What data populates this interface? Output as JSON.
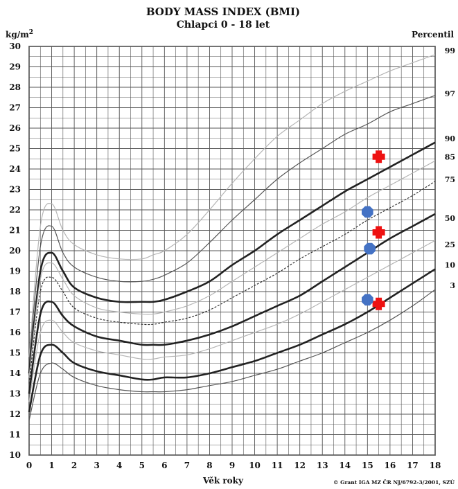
{
  "chart_data": {
    "type": "line",
    "title": "BODY MASS INDEX (BMI)",
    "subtitle": "Chlapci 0 - 18 let",
    "xlabel": "Věk roky",
    "ylabel": "kg/m²",
    "percentile_label": "Percentil",
    "credit": "© Grant IGA MZ ČR NJ/6792-3/2001, SZÚ",
    "xlim": [
      0,
      18
    ],
    "ylim": [
      10,
      30
    ],
    "x_ticks": [
      "0",
      "1",
      "2",
      "3",
      "4",
      "5",
      "6",
      "7",
      "8",
      "9",
      "10",
      "11",
      "12",
      "13",
      "14",
      "15",
      "16",
      "17",
      "18"
    ],
    "y_ticks": [
      "10",
      "11",
      "12",
      "13",
      "14",
      "15",
      "16",
      "17",
      "18",
      "19",
      "20",
      "21",
      "22",
      "23",
      "24",
      "25",
      "26",
      "27",
      "28",
      "29",
      "30"
    ],
    "grid": true,
    "x": [
      0,
      0.5,
      1,
      1.5,
      2,
      3,
      4,
      5,
      5.5,
      6,
      7,
      8,
      9,
      10,
      11,
      12,
      13,
      14,
      15,
      16,
      17,
      18
    ],
    "series": [
      {
        "name": "99",
        "color": "#b5b5b5",
        "dash": "",
        "weight": 1.2,
        "values": [
          14.8,
          21.2,
          22.3,
          21.0,
          20.3,
          19.8,
          19.6,
          19.6,
          19.8,
          20.0,
          20.8,
          22.0,
          23.3,
          24.5,
          25.6,
          26.4,
          27.2,
          27.8,
          28.3,
          28.8,
          29.2,
          29.6
        ]
      },
      {
        "name": "97",
        "color": "#555555",
        "dash": "",
        "weight": 1.2,
        "values": [
          14.5,
          20.2,
          21.2,
          19.9,
          19.2,
          18.7,
          18.5,
          18.5,
          18.6,
          18.8,
          19.4,
          20.4,
          21.5,
          22.5,
          23.5,
          24.3,
          25.0,
          25.7,
          26.2,
          26.8,
          27.2,
          27.6
        ]
      },
      {
        "name": "90",
        "color": "#222222",
        "dash": "",
        "weight": 2.6,
        "values": [
          14.0,
          19.0,
          19.9,
          19.0,
          18.2,
          17.7,
          17.5,
          17.5,
          17.5,
          17.6,
          18.0,
          18.5,
          19.3,
          20.0,
          20.8,
          21.5,
          22.2,
          22.9,
          23.5,
          24.1,
          24.7,
          25.3
        ]
      },
      {
        "name": "85",
        "color": "#b5b5b5",
        "dash": "",
        "weight": 1.2,
        "values": [
          13.8,
          18.6,
          19.4,
          18.6,
          17.8,
          17.2,
          17.0,
          16.9,
          16.9,
          17.0,
          17.3,
          17.8,
          18.5,
          19.2,
          19.9,
          20.6,
          21.3,
          21.9,
          22.6,
          23.2,
          23.8,
          24.4
        ]
      },
      {
        "name": "75",
        "color": "#333333",
        "dash": "3,2",
        "weight": 1.2,
        "values": [
          13.5,
          18.0,
          18.7,
          18.0,
          17.2,
          16.7,
          16.5,
          16.4,
          16.4,
          16.5,
          16.7,
          17.1,
          17.7,
          18.3,
          18.9,
          19.6,
          20.2,
          20.8,
          21.5,
          22.1,
          22.7,
          23.4
        ]
      },
      {
        "name": "50",
        "color": "#222222",
        "dash": "",
        "weight": 2.6,
        "values": [
          13.0,
          16.9,
          17.5,
          16.8,
          16.3,
          15.8,
          15.6,
          15.4,
          15.4,
          15.4,
          15.6,
          15.9,
          16.3,
          16.8,
          17.3,
          17.8,
          18.5,
          19.2,
          19.9,
          20.6,
          21.2,
          21.8
        ]
      },
      {
        "name": "25",
        "color": "#b5b5b5",
        "dash": "",
        "weight": 1.2,
        "values": [
          12.6,
          16.0,
          16.6,
          16.0,
          15.5,
          15.1,
          14.9,
          14.7,
          14.7,
          14.8,
          14.9,
          15.2,
          15.6,
          16.0,
          16.4,
          16.9,
          17.5,
          18.1,
          18.7,
          19.3,
          19.9,
          20.5
        ]
      },
      {
        "name": "10",
        "color": "#222222",
        "dash": "",
        "weight": 2.6,
        "values": [
          12.1,
          14.9,
          15.4,
          15.0,
          14.5,
          14.1,
          13.9,
          13.7,
          13.7,
          13.8,
          13.8,
          14.0,
          14.3,
          14.6,
          15.0,
          15.4,
          15.9,
          16.4,
          17.0,
          17.7,
          18.4,
          19.1
        ]
      },
      {
        "name": "3",
        "color": "#555555",
        "dash": "",
        "weight": 1.2,
        "values": [
          11.7,
          14.0,
          14.5,
          14.2,
          13.8,
          13.4,
          13.2,
          13.1,
          13.1,
          13.1,
          13.2,
          13.4,
          13.6,
          13.9,
          14.2,
          14.6,
          15.0,
          15.5,
          16.0,
          16.6,
          17.3,
          18.1
        ]
      }
    ],
    "markers": [
      {
        "shape": "cross",
        "color": "#ee1111",
        "x": 15.5,
        "y": 24.6
      },
      {
        "shape": "cross",
        "color": "#ee1111",
        "x": 15.5,
        "y": 20.9
      },
      {
        "shape": "cross",
        "color": "#ee1111",
        "x": 15.5,
        "y": 17.4
      },
      {
        "shape": "octagon",
        "color": "#4472c4",
        "x": 15.0,
        "y": 21.9
      },
      {
        "shape": "octagon",
        "color": "#4472c4",
        "x": 15.1,
        "y": 20.1
      },
      {
        "shape": "octagon",
        "color": "#4472c4",
        "x": 15.0,
        "y": 17.6
      }
    ],
    "percentile_labels": [
      {
        "text": "99",
        "y": 29.8,
        "color": "#999999"
      },
      {
        "text": "97",
        "y": 27.7,
        "color": "#111111"
      },
      {
        "text": "90",
        "y": 25.5,
        "color": "#111111"
      },
      {
        "text": "85",
        "y": 24.6,
        "color": "#999999"
      },
      {
        "text": "75",
        "y": 23.5,
        "color": "#111111"
      },
      {
        "text": "50",
        "y": 21.6,
        "color": "#111111"
      },
      {
        "text": "25",
        "y": 20.3,
        "color": "#111111"
      },
      {
        "text": "10",
        "y": 19.3,
        "color": "#111111"
      },
      {
        "text": "3",
        "y": 18.3,
        "color": "#111111"
      }
    ]
  }
}
